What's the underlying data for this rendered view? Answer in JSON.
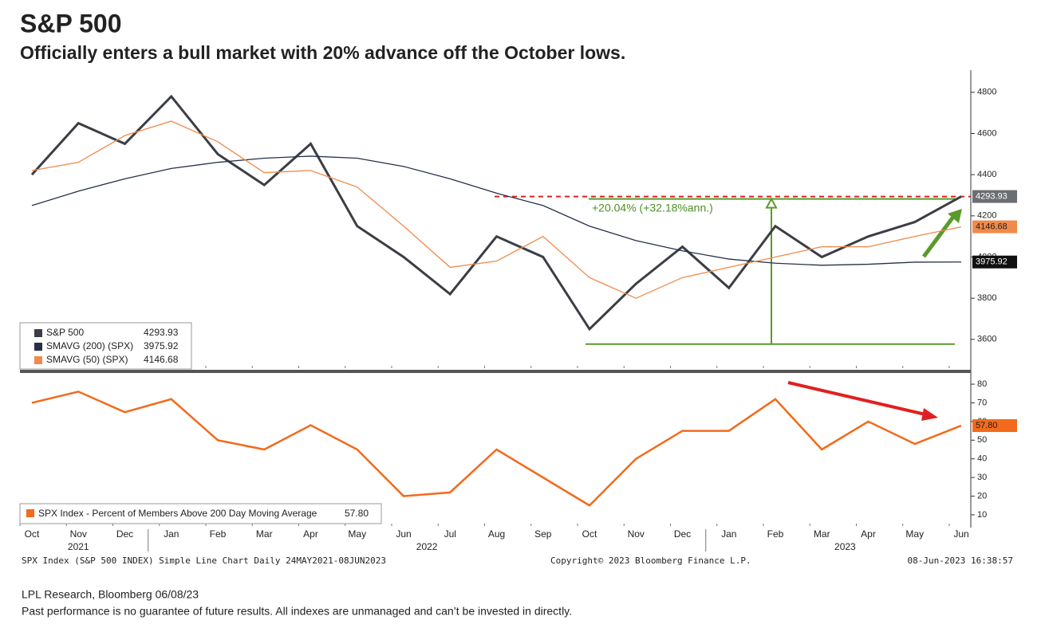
{
  "header": {
    "title": "S&P 500",
    "subtitle": "Officially enters a bull market with 20% advance off the October lows."
  },
  "chart_data": [
    {
      "type": "line",
      "categories": [
        "Oct",
        "Nov",
        "Dec",
        "Jan",
        "Feb",
        "Mar",
        "Apr",
        "May",
        "Jun",
        "Jul",
        "Aug",
        "Sep",
        "Oct",
        "Nov",
        "Dec",
        "Jan",
        "Feb",
        "Mar",
        "Apr",
        "May",
        "Jun"
      ],
      "series": [
        {
          "name": "S&P 500",
          "color": "#3b3e44",
          "values": [
            4400,
            4650,
            4550,
            4780,
            4500,
            4350,
            4550,
            4150,
            4000,
            3820,
            4100,
            4000,
            3650,
            3870,
            4050,
            3850,
            4150,
            4000,
            4100,
            4170,
            4293.93
          ]
        },
        {
          "name": "SMAVG (200) (SPX)",
          "color": "#27304a",
          "values": [
            4250,
            4320,
            4380,
            4430,
            4460,
            4480,
            4490,
            4480,
            4440,
            4380,
            4310,
            4250,
            4150,
            4080,
            4030,
            3990,
            3970,
            3960,
            3965,
            3975,
            3975.92
          ]
        },
        {
          "name": "SMAVG (50) (SPX)",
          "color": "#f08a4b",
          "values": [
            4420,
            4460,
            4590,
            4660,
            4560,
            4410,
            4420,
            4340,
            4150,
            3950,
            3980,
            4100,
            3900,
            3800,
            3900,
            3950,
            4000,
            4050,
            4050,
            4100,
            4146.68
          ]
        }
      ],
      "low_level": 3577,
      "annotation": "+20.04% (+32.18%ann.)",
      "ylim": [
        3460,
        4900
      ],
      "yticks": [
        3600,
        3800,
        4000,
        4200,
        4400,
        4600,
        4800
      ]
    },
    {
      "type": "line",
      "categories": [
        "Oct",
        "Nov",
        "Dec",
        "Jan",
        "Feb",
        "Mar",
        "Apr",
        "May",
        "Jun",
        "Jul",
        "Aug",
        "Sep",
        "Oct",
        "Nov",
        "Dec",
        "Jan",
        "Feb",
        "Mar",
        "Apr",
        "May",
        "Jun"
      ],
      "years": [
        "2021",
        "2022",
        "2023"
      ],
      "series": [
        {
          "name": "SPX Index - Percent of Members Above 200 Day Moving Average",
          "color": "#f26a1b",
          "values": [
            70,
            76,
            65,
            72,
            50,
            45,
            58,
            45,
            20,
            22,
            45,
            30,
            15,
            40,
            55,
            55,
            72,
            45,
            60,
            48,
            57.8
          ],
          "last_label": "57.80"
        }
      ],
      "ylim": [
        4,
        86
      ],
      "yticks": [
        10,
        20,
        30,
        40,
        50,
        60,
        70,
        80
      ]
    }
  ],
  "footer": {
    "source_left": "SPX Index (S&P 500 INDEX) Simple Line Chart  Daily 24MAY2021-08JUN2023",
    "copyright": "Copyright© 2023 Bloomberg Finance L.P.",
    "timestamp": "08-Jun-2023 16:38:57",
    "source": "LPL Research, Bloomberg 06/08/23",
    "disclaimer": "Past performance is no guarantee of future results. All indexes are unmanaged and can’t be invested in directly."
  }
}
